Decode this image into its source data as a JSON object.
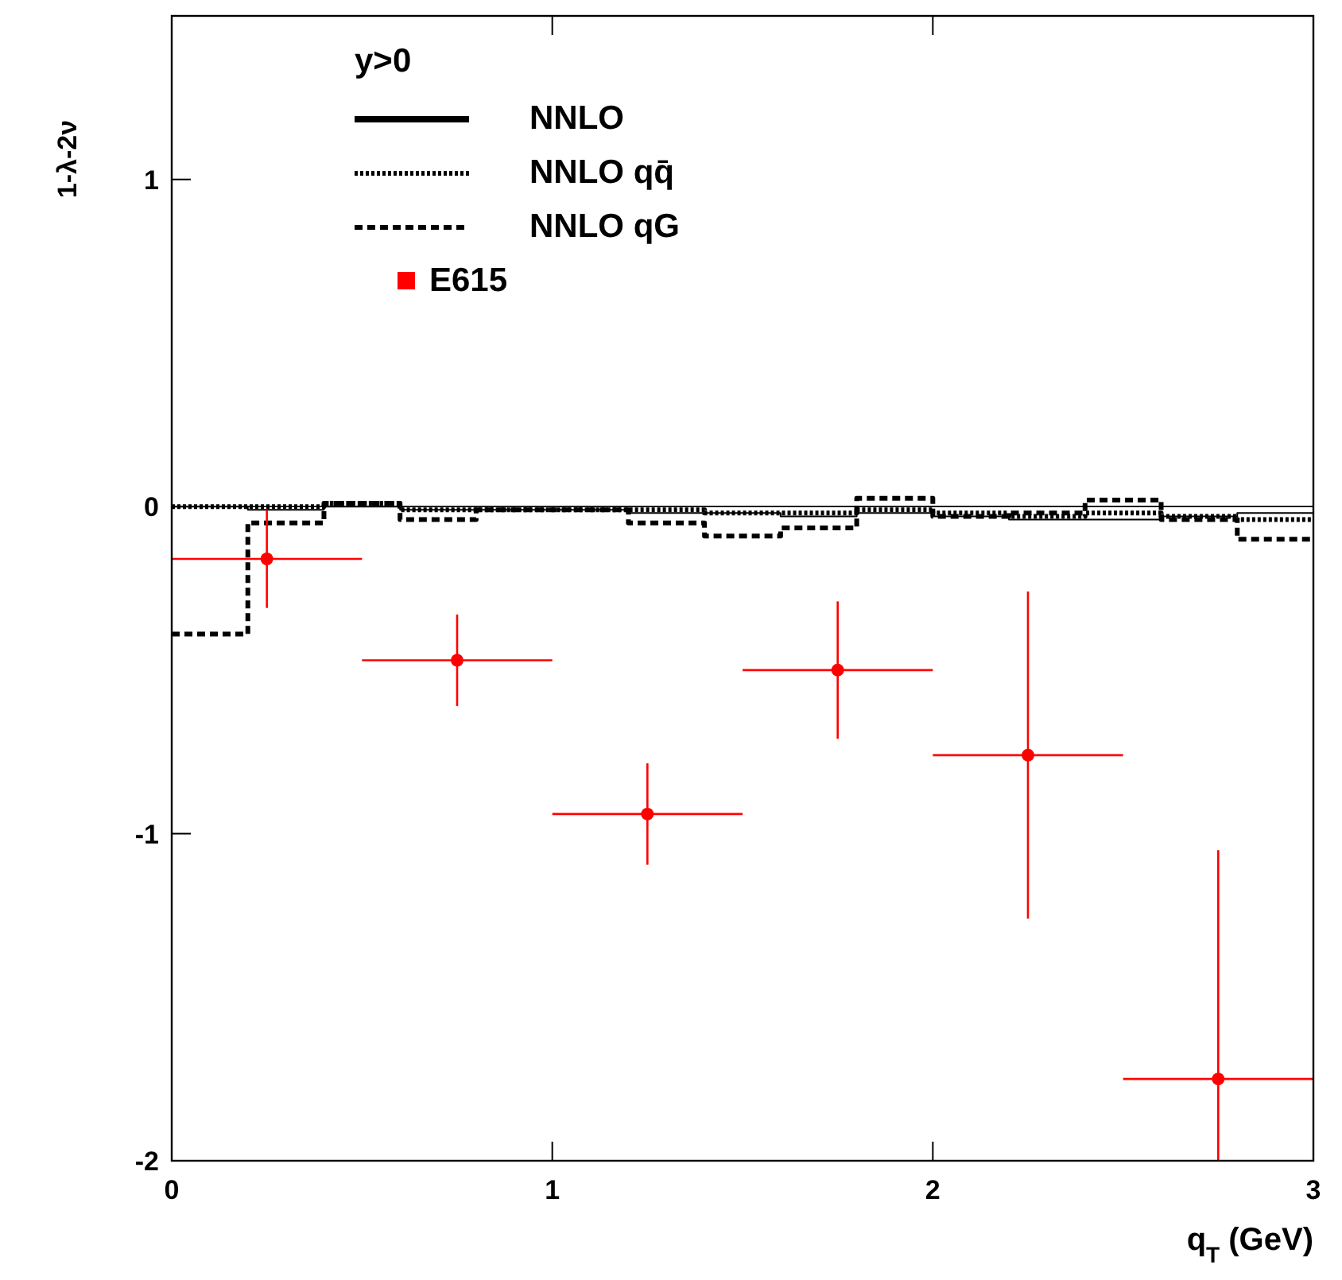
{
  "chart_data": {
    "type": "step",
    "xlabel": "q$_{T}$ (GeV)",
    "ylabel": "1-λ-2ν",
    "legend_title": "y>0",
    "legend": "top left",
    "grid": false,
    "xlim": [
      0,
      3
    ],
    "ylim": [
      -2,
      1.5
    ],
    "xticks": [
      0,
      1,
      2,
      3
    ],
    "yticks": [
      -2,
      -1,
      0,
      1
    ],
    "ref_lines": [
      {
        "axis": "y",
        "value": 0,
        "color": "#000000"
      }
    ],
    "series": [
      {
        "name": "NNLO",
        "color": "#000000",
        "line_style": "solid",
        "x": [
          0,
          0.2,
          0.4,
          0.6,
          0.8,
          1.0,
          1.2,
          1.4,
          1.6,
          1.8,
          2.0,
          2.2,
          2.4,
          2.6,
          2.8,
          3.0
        ],
        "values": [
          0,
          -0.01,
          0,
          -0.01,
          -0.01,
          -0.01,
          -0.02,
          -0.02,
          -0.03,
          -0.02,
          -0.03,
          -0.04,
          -0.04,
          -0.03,
          -0.02,
          -0.02
        ]
      },
      {
        "name": "NNLO qq̄",
        "color": "#000000",
        "line_style": "dotted",
        "x": [
          0,
          0.2,
          0.4,
          0.6,
          0.8,
          1.0,
          1.2,
          1.4,
          1.6,
          1.8,
          2.0,
          2.2,
          2.4,
          2.6,
          2.8,
          3.0
        ],
        "values": [
          0,
          0,
          0.01,
          -0.01,
          -0.01,
          -0.01,
          -0.01,
          -0.02,
          -0.02,
          -0.01,
          -0.02,
          -0.03,
          -0.02,
          -0.03,
          -0.04,
          -0.04
        ]
      },
      {
        "name": "NNLO qG",
        "color": "#000000",
        "line_style": "dashed",
        "x": [
          0,
          0.2,
          0.4,
          0.6,
          0.8,
          1.0,
          1.2,
          1.4,
          1.6,
          1.8,
          2.0,
          2.2,
          2.4,
          2.6,
          2.8,
          3.0
        ],
        "values": [
          -0.39,
          -0.05,
          0.01,
          -0.04,
          -0.01,
          -0.01,
          -0.05,
          -0.09,
          -0.065,
          0.025,
          -0.03,
          -0.02,
          0.02,
          -0.04,
          -0.1,
          -0.1
        ]
      },
      {
        "name": "E615",
        "type": "scatter",
        "marker": "circle",
        "color": "#ff0000",
        "x": [
          0.25,
          0.75,
          1.25,
          1.75,
          2.25,
          2.75
        ],
        "values": [
          -0.16,
          -0.47,
          -0.94,
          -0.5,
          -0.76,
          -1.75
        ],
        "errors": [
          0.15,
          0.14,
          0.155,
          0.21,
          0.5,
          [
            -2,
            -1.05
          ]
        ],
        "xerrors": [
          0.25,
          0.25,
          0.25,
          0.25,
          0.25,
          0.25
        ]
      }
    ]
  }
}
